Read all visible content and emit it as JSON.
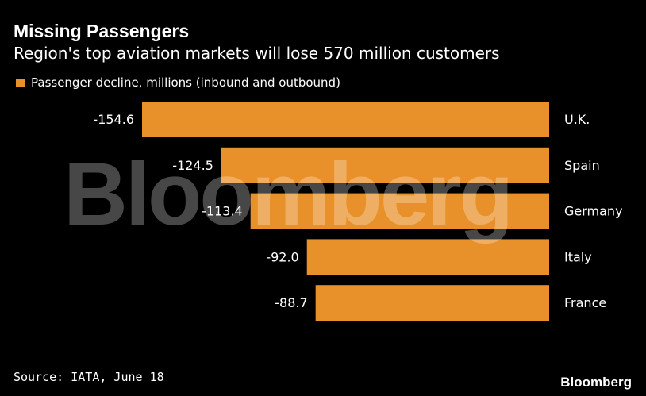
{
  "header": {
    "title": "Missing Passengers",
    "subtitle": "Region's top aviation markets will lose 570 million customers"
  },
  "legend": {
    "label": "Passenger decline, millions (inbound and outbound)",
    "color": "#E8902A"
  },
  "watermark": "Bloomberg",
  "footer": {
    "source": "Source: IATA, June 18",
    "logo": "Bloomberg"
  },
  "chart_data": {
    "type": "bar",
    "orientation": "horizontal",
    "categories": [
      "U.K.",
      "Spain",
      "Germany",
      "Italy",
      "France"
    ],
    "values": [
      -154.6,
      -124.5,
      -113.4,
      -92.0,
      -88.7
    ],
    "value_labels": [
      "-154.6",
      "-124.5",
      "-113.4",
      "-92.0",
      "-88.7"
    ],
    "series": [
      {
        "name": "Passenger decline, millions (inbound and outbound)",
        "values": [
          -154.6,
          -124.5,
          -113.4,
          -92.0,
          -88.7
        ]
      }
    ],
    "xlim": [
      -154.6,
      0
    ],
    "grid": false,
    "legend_position": "top-left",
    "bar_color": "#E8902A"
  }
}
